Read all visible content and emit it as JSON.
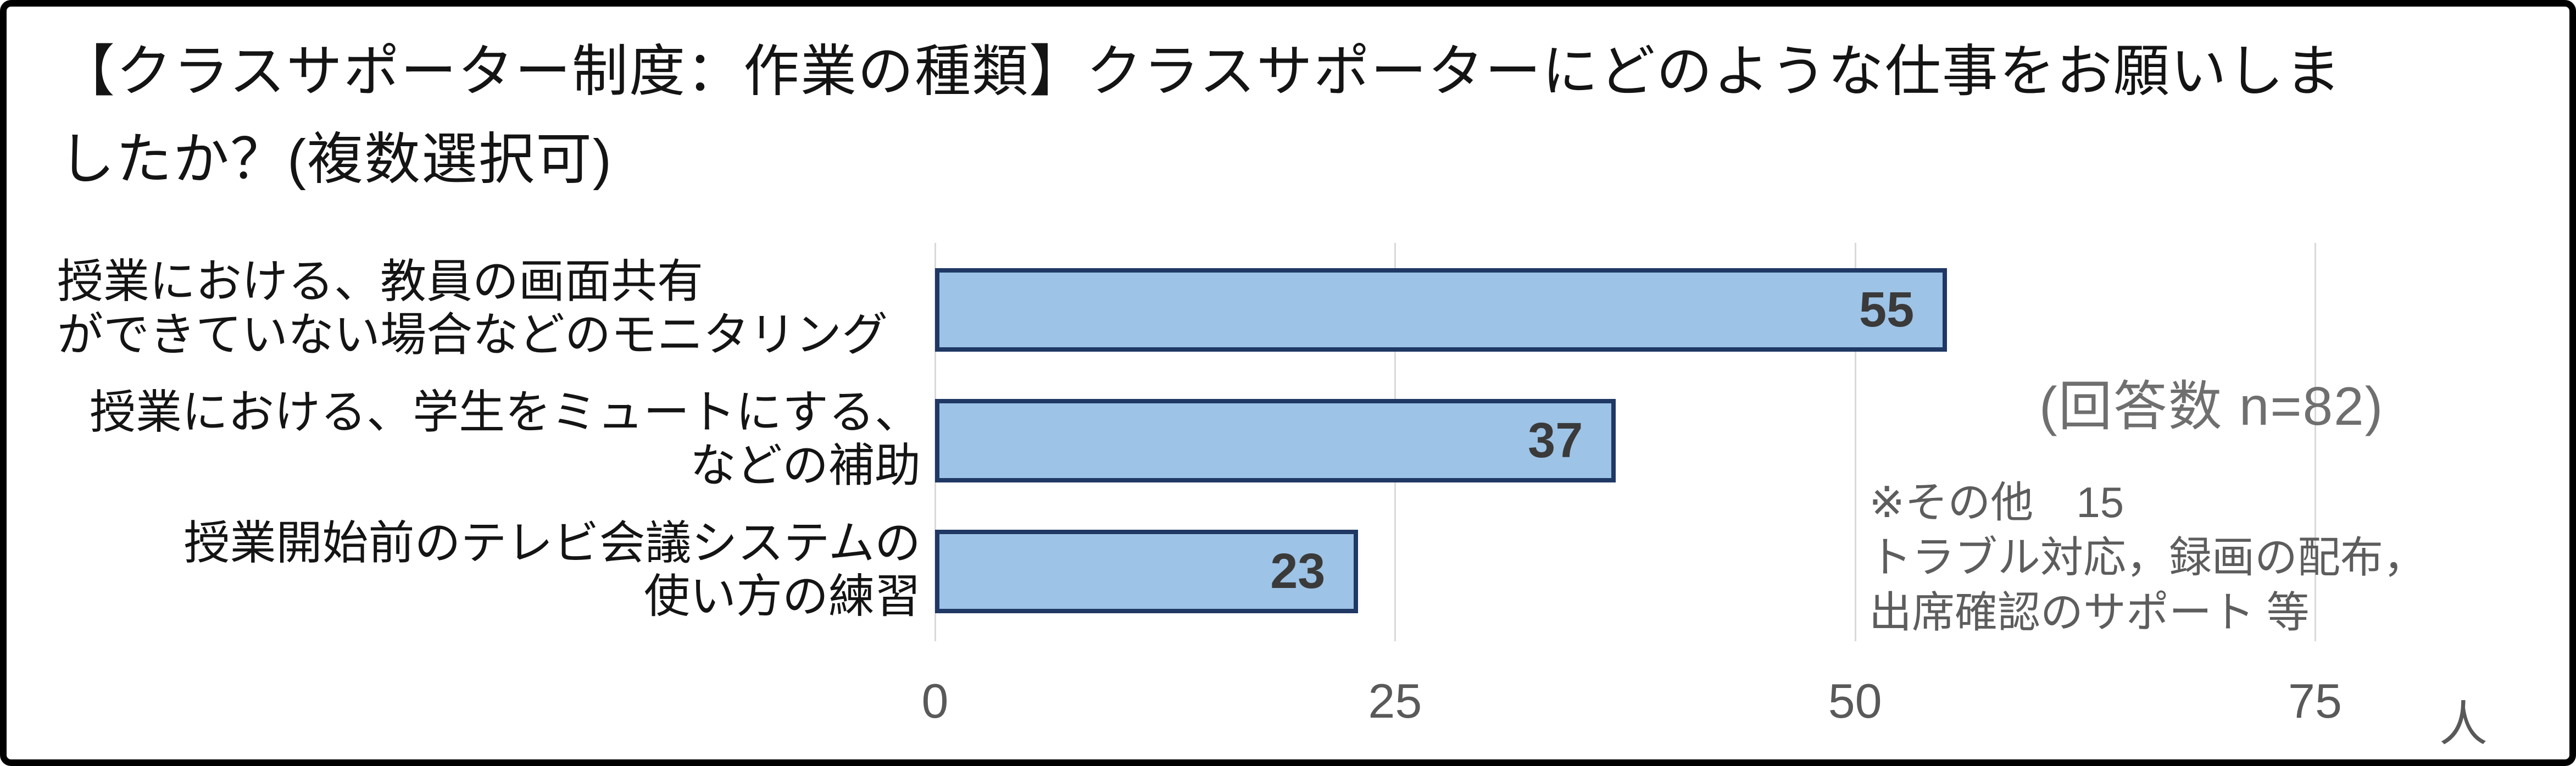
{
  "title": {
    "line1": "【クラスサポーター制度：作業の種類】クラスサポーターにどのような仕事をお願いしま",
    "line2": "したか？(複数選択可)"
  },
  "chart_data": {
    "type": "bar",
    "orientation": "horizontal",
    "title": "【クラスサポーター制度：作業の種類】クラスサポーターにどのような仕事をお願いしましたか？(複数選択可)",
    "categories": [
      "授業における、教員の画面共有ができていない場合などのモニタリング",
      "授業における、学生をミュートにする、などの補助",
      "授業開始前のテレビ会議システムの使い方の練習"
    ],
    "values": [
      55,
      37,
      23
    ],
    "data_labels": [
      "55",
      "37",
      "23"
    ],
    "xlim": [
      0,
      75
    ],
    "x_ticks": [
      0,
      25,
      50,
      75
    ],
    "x_unit": "人",
    "grid": "vertical-only",
    "legend": "none",
    "bar_fill_color": "#9DC3E6",
    "bar_border_color": "#1F3864",
    "gridline_color": "#D9D9D9",
    "annotations": [
      "(回答数 n=82)",
      "※その他　15",
      "トラブル対応，録画の配布，",
      "出席確認のサポート 等"
    ]
  },
  "rows": [
    {
      "label_line1": "授業における、教員の画面共有",
      "label_line2": "ができていない場合などのモニタリング",
      "value": "55"
    },
    {
      "label_line1": "授業における、学生をミュートにする、",
      "label_line2": "などの補助",
      "value": "37"
    },
    {
      "label_line1": "授業開始前のテレビ会議システムの",
      "label_line2": "使い方の練習",
      "value": "23"
    }
  ],
  "x_axis": {
    "tick0": "0",
    "tick1": "25",
    "tick2": "50",
    "tick3": "75",
    "unit": "人"
  },
  "annotation": {
    "response_count": "(回答数 n=82)",
    "other_line1": "※その他　15",
    "other_line2": "トラブル対応，録画の配布，",
    "other_line3": "出席確認のサポート 等"
  }
}
